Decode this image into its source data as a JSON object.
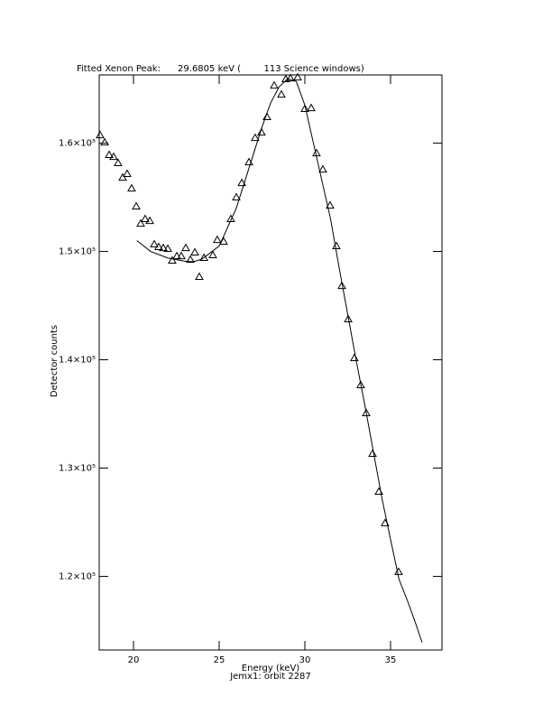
{
  "chart_data": {
    "type": "scatter",
    "title": "Fitted Xenon Peak:      29.6805 keV (        113 Science windows)",
    "x_label": "Energy (keV)",
    "subtitle": "Jemx1: orbit 2287",
    "y_label": "Detector counts",
    "xlim": [
      18,
      38
    ],
    "ylim": [
      113200,
      166300
    ],
    "xticks": [
      20,
      25,
      30,
      35
    ],
    "yticks": [
      {
        "value": 120000,
        "label": "1.2×10⁵"
      },
      {
        "value": 130000,
        "label": "1.3×10⁵"
      },
      {
        "value": 140000,
        "label": "1.4×10⁵"
      },
      {
        "value": 150000,
        "label": "1.5×10⁵"
      },
      {
        "value": 160000,
        "label": "1.6×10⁵"
      }
    ],
    "series": [
      {
        "type": "scatter",
        "marker": "triangle",
        "color": "#000000",
        "x": [
          18.05,
          18.32,
          18.58,
          18.84,
          19.1,
          19.37,
          19.63,
          19.89,
          20.16,
          20.42,
          20.68,
          20.95,
          21.21,
          21.47,
          21.74,
          22.0,
          22.26,
          22.53,
          22.79,
          23.05,
          23.32,
          23.58,
          23.84,
          24.11,
          24.63,
          24.89,
          25.26,
          25.68,
          26.0,
          26.32,
          26.74,
          27.1,
          27.47,
          27.79,
          28.21,
          28.63,
          28.89,
          29.16,
          29.58,
          30.0,
          30.37,
          30.68,
          31.05,
          31.47,
          31.84,
          32.16,
          32.53,
          32.89,
          33.26,
          33.58,
          33.95,
          34.32,
          34.68,
          35.47
        ],
        "values": [
          160750,
          160080,
          158920,
          158750,
          158170,
          156830,
          157170,
          155830,
          154170,
          152580,
          153000,
          152830,
          150670,
          150420,
          150330,
          150250,
          149170,
          149580,
          149580,
          150330,
          149250,
          149920,
          147670,
          149420,
          149670,
          151080,
          150920,
          153000,
          155000,
          156330,
          158250,
          160500,
          161000,
          162420,
          165330,
          164500,
          165920,
          166000,
          166080,
          163170,
          163250,
          159080,
          157580,
          154250,
          150500,
          146830,
          143750,
          140170,
          137670,
          135080,
          131330,
          127830,
          124920,
          120420
        ]
      },
      {
        "type": "line",
        "color": "#000000",
        "x": [
          20.2,
          21,
          22,
          23,
          23.5,
          24,
          25,
          26,
          27,
          27.5,
          28,
          28.5,
          29,
          29.5,
          30,
          30.5,
          31,
          31.5,
          32,
          32.5,
          33,
          33.5,
          34,
          34.5,
          35,
          35.5,
          36,
          36.5,
          36.84
        ],
        "values": [
          151000,
          150000,
          149400,
          149100,
          149050,
          149300,
          150500,
          154000,
          159000,
          161500,
          163700,
          165200,
          165950,
          165700,
          163500,
          160000,
          156500,
          153000,
          148500,
          144200,
          139900,
          135800,
          131500,
          127200,
          123400,
          119700,
          117700,
          115500,
          113900
        ]
      }
    ]
  }
}
